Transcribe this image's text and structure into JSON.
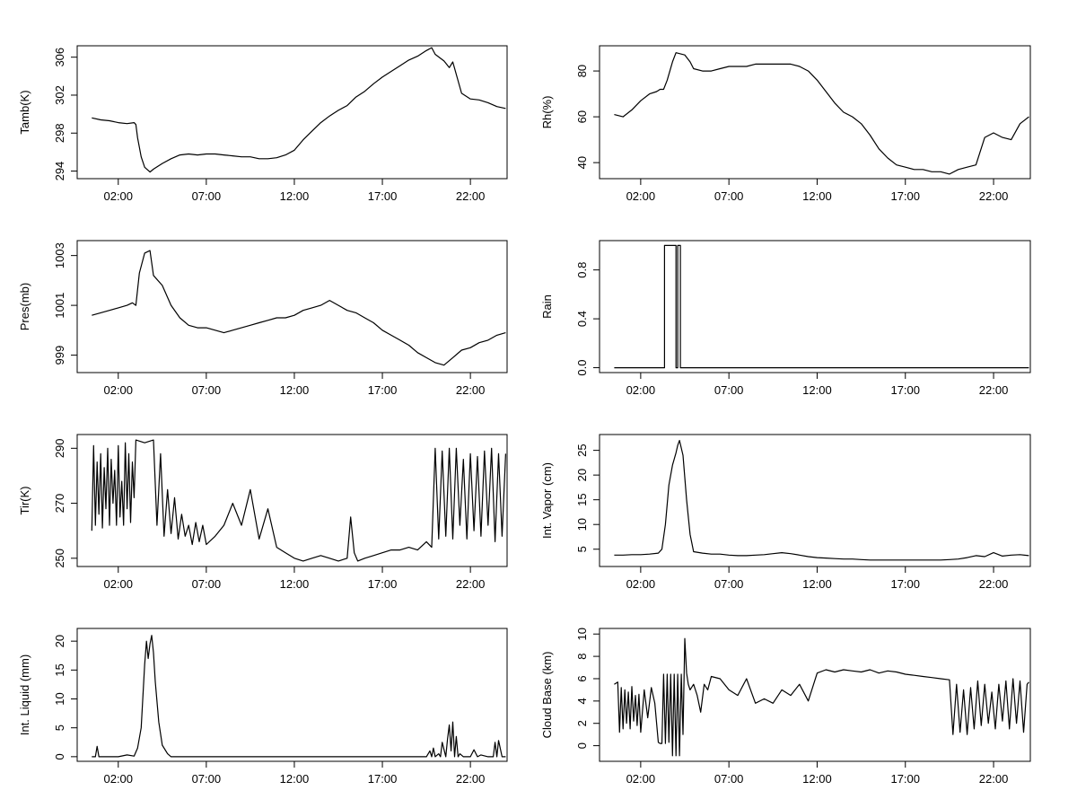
{
  "chart_data": [
    {
      "type": "line",
      "ylabel": "Tamb(K)",
      "xticks": [
        "02:00",
        "07:00",
        "12:00",
        "17:00",
        "22:00"
      ],
      "xlim": [
        -0.333,
        24.083
      ],
      "ylim": [
        293.2,
        307.2
      ],
      "yticks": [
        "294",
        "298",
        "302",
        "306"
      ],
      "series": [
        {
          "x": [
            0.5,
            1.0,
            1.5,
            2.0,
            2.5,
            2.9,
            3.0,
            3.1,
            3.3,
            3.5,
            3.8,
            4.0,
            4.5,
            5.0,
            5.5,
            6.0,
            6.5,
            7.0,
            7.5,
            8.0,
            8.5,
            9.0,
            9.5,
            10.0,
            10.5,
            11.0,
            11.5,
            12.0,
            12.5,
            13.0,
            13.5,
            14.0,
            14.5,
            15.0,
            15.5,
            16.0,
            16.5,
            17.0,
            17.5,
            18.0,
            18.5,
            19.0,
            19.5,
            19.8,
            20.0,
            20.5,
            20.8,
            21.0,
            21.5,
            22.0,
            22.5,
            23.0,
            23.5,
            24.0
          ],
          "y": [
            299.6,
            299.4,
            299.3,
            299.1,
            299.0,
            299.1,
            298.9,
            297.5,
            295.5,
            294.4,
            293.9,
            294.2,
            294.8,
            295.3,
            295.7,
            295.8,
            295.7,
            295.8,
            295.8,
            295.7,
            295.6,
            295.5,
            295.5,
            295.3,
            295.3,
            295.4,
            295.7,
            296.2,
            297.3,
            298.2,
            299.1,
            299.8,
            300.4,
            300.9,
            301.8,
            302.4,
            303.2,
            303.9,
            304.5,
            305.1,
            305.7,
            306.1,
            306.7,
            307.0,
            306.3,
            305.6,
            304.9,
            305.5,
            302.2,
            301.6,
            301.5,
            301.2,
            300.8,
            300.6
          ]
        }
      ]
    },
    {
      "type": "line",
      "ylabel": "Rh(%)",
      "xticks": [
        "02:00",
        "07:00",
        "12:00",
        "17:00",
        "22:00"
      ],
      "xlim": [
        -0.333,
        24.083
      ],
      "ylim": [
        33,
        91
      ],
      "yticks": [
        "40",
        "60",
        "80"
      ],
      "series": [
        {
          "x": [
            0.5,
            1.0,
            1.5,
            2.0,
            2.5,
            2.9,
            3.1,
            3.3,
            3.5,
            3.8,
            4.0,
            4.5,
            4.8,
            5.0,
            5.5,
            6.0,
            6.5,
            7.0,
            7.5,
            8.0,
            8.5,
            9.0,
            9.5,
            10.0,
            10.5,
            11.0,
            11.5,
            12.0,
            12.5,
            13.0,
            13.5,
            14.0,
            14.5,
            15.0,
            15.5,
            16.0,
            16.5,
            17.0,
            17.5,
            18.0,
            18.5,
            19.0,
            19.5,
            20.0,
            20.5,
            21.0,
            21.5,
            22.0,
            22.5,
            23.0,
            23.5,
            24.0
          ],
          "y": [
            61,
            60,
            63,
            67,
            70,
            71,
            72,
            72,
            76,
            84,
            88,
            87,
            84,
            81,
            80,
            80,
            81,
            82,
            82,
            82,
            83,
            83,
            83,
            83,
            83,
            82,
            80,
            76,
            71,
            66,
            62,
            60,
            57,
            52,
            46,
            42,
            39,
            38,
            37,
            37,
            36,
            36,
            35,
            37,
            38,
            39,
            51,
            53,
            51,
            50,
            57,
            60
          ]
        }
      ]
    },
    {
      "type": "line",
      "ylabel": "Pres(mb)",
      "xticks": [
        "02:00",
        "07:00",
        "12:00",
        "17:00",
        "22:00"
      ],
      "xlim": [
        -0.333,
        24.083
      ],
      "ylim": [
        998.3,
        1003.6
      ],
      "yticks": [
        "999",
        "1001",
        "1003"
      ],
      "series": [
        {
          "x": [
            0.5,
            1.0,
            1.5,
            2.0,
            2.5,
            2.8,
            3.0,
            3.2,
            3.5,
            3.8,
            4.0,
            4.5,
            5.0,
            5.5,
            6.0,
            6.5,
            7.0,
            7.5,
            8.0,
            8.5,
            9.0,
            9.5,
            10.0,
            10.5,
            11.0,
            11.5,
            12.0,
            12.5,
            13.0,
            13.5,
            14.0,
            14.5,
            15.0,
            15.5,
            16.0,
            16.5,
            17.0,
            17.5,
            18.0,
            18.5,
            19.0,
            19.5,
            20.0,
            20.5,
            21.0,
            21.5,
            22.0,
            22.5,
            23.0,
            23.5,
            24.0
          ],
          "y": [
            1000.6,
            1000.7,
            1000.8,
            1000.9,
            1001.0,
            1001.1,
            1001.0,
            1002.3,
            1003.1,
            1003.2,
            1002.2,
            1001.8,
            1001.0,
            1000.5,
            1000.2,
            1000.1,
            1000.1,
            1000.0,
            999.9,
            1000.0,
            1000.1,
            1000.2,
            1000.3,
            1000.4,
            1000.5,
            1000.5,
            1000.6,
            1000.8,
            1000.9,
            1001.0,
            1001.2,
            1001.0,
            1000.8,
            1000.7,
            1000.5,
            1000.3,
            1000.0,
            999.8,
            999.6,
            999.4,
            999.1,
            998.9,
            998.7,
            998.6,
            998.9,
            999.2,
            999.3,
            999.5,
            999.6,
            999.8,
            999.9
          ]
        }
      ]
    },
    {
      "type": "line",
      "ylabel": "Rain",
      "xticks": [
        "02:00",
        "07:00",
        "12:00",
        "17:00",
        "22:00"
      ],
      "xlim": [
        -0.333,
        24.083
      ],
      "ylim": [
        -0.04,
        1.04
      ],
      "yticks": [
        "0.0",
        "0.4",
        "0.8"
      ],
      "series": [
        {
          "x": [
            0.5,
            3.35,
            3.35,
            4.0,
            4.0,
            4.1,
            4.1,
            4.25,
            4.25,
            24.0
          ],
          "y": [
            0,
            0,
            1,
            1,
            0,
            0,
            1,
            1,
            0,
            0
          ]
        }
      ]
    },
    {
      "type": "line",
      "ylabel": "Tir(K)",
      "xticks": [
        "02:00",
        "07:00",
        "12:00",
        "17:00",
        "22:00"
      ],
      "xlim": [
        -0.333,
        24.083
      ],
      "ylim": [
        247,
        295
      ],
      "yticks": [
        "250",
        "270",
        "290"
      ],
      "series": [
        {
          "x": [
            0.5,
            0.6,
            0.7,
            0.8,
            0.9,
            1.0,
            1.1,
            1.2,
            1.3,
            1.4,
            1.5,
            1.6,
            1.7,
            1.8,
            1.9,
            2.0,
            2.1,
            2.2,
            2.3,
            2.4,
            2.5,
            2.6,
            2.7,
            2.8,
            2.9,
            3.0,
            3.5,
            4.0,
            4.2,
            4.4,
            4.6,
            4.8,
            5.0,
            5.2,
            5.4,
            5.6,
            5.8,
            6.0,
            6.2,
            6.4,
            6.6,
            6.8,
            7.0,
            7.5,
            8.0,
            8.5,
            9.0,
            9.5,
            10.0,
            10.5,
            11.0,
            11.5,
            12.0,
            12.5,
            13.0,
            13.5,
            14.0,
            14.5,
            15.0,
            15.2,
            15.4,
            15.6,
            16.0,
            16.5,
            17.0,
            17.5,
            18.0,
            18.5,
            19.0,
            19.5,
            19.8,
            20.0,
            20.2,
            20.4,
            20.6,
            20.8,
            21.0,
            21.2,
            21.4,
            21.6,
            21.8,
            22.0,
            22.2,
            22.4,
            22.6,
            22.8,
            23.0,
            23.2,
            23.4,
            23.6,
            23.8,
            24.0
          ],
          "y": [
            260,
            291,
            262,
            285,
            266,
            288,
            261,
            283,
            268,
            290,
            262,
            286,
            270,
            282,
            262,
            291,
            265,
            278,
            262,
            292,
            268,
            288,
            263,
            285,
            272,
            293,
            292,
            293,
            262,
            288,
            258,
            275,
            259,
            272,
            257,
            266,
            258,
            262,
            255,
            263,
            256,
            262,
            255,
            258,
            262,
            270,
            262,
            275,
            257,
            268,
            254,
            252,
            250,
            249,
            250,
            251,
            250,
            249,
            250,
            265,
            252,
            249,
            250,
            251,
            252,
            253,
            253,
            254,
            253,
            256,
            254,
            290,
            257,
            289,
            258,
            290,
            257,
            290,
            262,
            286,
            257,
            288,
            260,
            287,
            258,
            289,
            262,
            290,
            256,
            288,
            258,
            288
          ]
        }
      ]
    },
    {
      "type": "line",
      "ylabel": "Int. Vapor (cm)",
      "xticks": [
        "02:00",
        "07:00",
        "12:00",
        "17:00",
        "22:00"
      ],
      "xlim": [
        -0.333,
        24.083
      ],
      "ylim": [
        1.5,
        28.2
      ],
      "yticks": [
        "5",
        "10",
        "15",
        "20",
        "25"
      ],
      "series": [
        {
          "x": [
            0.5,
            1.0,
            1.5,
            2.0,
            2.5,
            3.0,
            3.2,
            3.4,
            3.6,
            3.8,
            4.0,
            4.1,
            4.2,
            4.4,
            4.6,
            4.8,
            5.0,
            5.5,
            6.0,
            6.5,
            7.0,
            7.5,
            8.0,
            8.5,
            9.0,
            9.5,
            10.0,
            10.5,
            11.0,
            11.5,
            12.0,
            12.5,
            13.0,
            13.5,
            14.0,
            14.5,
            15.0,
            15.5,
            16.0,
            16.5,
            17.0,
            17.5,
            18.0,
            18.5,
            19.0,
            19.5,
            20.0,
            20.5,
            21.0,
            21.5,
            22.0,
            22.5,
            23.0,
            23.5,
            24.0
          ],
          "y": [
            3.8,
            3.8,
            3.9,
            3.9,
            4.0,
            4.2,
            5.0,
            10.0,
            18.0,
            22.0,
            24.5,
            26.0,
            27.0,
            24.0,
            15.0,
            8.0,
            4.5,
            4.2,
            4.0,
            4.0,
            3.8,
            3.7,
            3.7,
            3.8,
            3.9,
            4.1,
            4.3,
            4.1,
            3.8,
            3.5,
            3.3,
            3.2,
            3.1,
            3.0,
            3.0,
            2.9,
            2.8,
            2.8,
            2.8,
            2.8,
            2.8,
            2.8,
            2.8,
            2.8,
            2.8,
            2.9,
            3.0,
            3.3,
            3.7,
            3.5,
            4.3,
            3.6,
            3.8,
            3.9,
            3.7
          ]
        }
      ]
    },
    {
      "type": "line",
      "ylabel": "Int. Liquid (mm)",
      "xticks": [
        "02:00",
        "07:00",
        "12:00",
        "17:00",
        "22:00"
      ],
      "xlim": [
        -0.333,
        24.083
      ],
      "ylim": [
        -0.8,
        22.2
      ],
      "yticks": [
        "0",
        "5",
        "10",
        "15",
        "20"
      ],
      "series": [
        {
          "x": [
            0.5,
            0.7,
            0.8,
            0.9,
            1.0,
            2.0,
            2.5,
            2.9,
            3.1,
            3.3,
            3.5,
            3.6,
            3.7,
            3.8,
            3.9,
            4.0,
            4.1,
            4.3,
            4.5,
            4.8,
            5.0,
            6.0,
            10.0,
            15.0,
            19.5,
            19.7,
            19.8,
            19.9,
            20.0,
            20.2,
            20.3,
            20.4,
            20.6,
            20.7,
            20.8,
            20.9,
            21.0,
            21.1,
            21.2,
            21.3,
            21.4,
            21.6,
            22.0,
            22.2,
            22.4,
            22.6,
            23.0,
            23.3,
            23.4,
            23.5,
            23.6,
            23.8,
            24.0
          ],
          "y": [
            0,
            0,
            1.8,
            0,
            0,
            0,
            0.3,
            0.1,
            1.5,
            5.0,
            16.0,
            20.0,
            17.0,
            19.5,
            21.0,
            18.0,
            13.0,
            6.0,
            2.0,
            0.5,
            0,
            0,
            0,
            0,
            0,
            1.0,
            0,
            1.5,
            0,
            0.5,
            0,
            2.5,
            0,
            3.0,
            5.5,
            1.0,
            6.0,
            0,
            3.5,
            0,
            0.5,
            0,
            0,
            1.2,
            0,
            0.3,
            0,
            0,
            2.5,
            0,
            2.8,
            0,
            0
          ]
        }
      ]
    },
    {
      "type": "line",
      "ylabel": "Cloud Base (km)",
      "xticks": [
        "02:00",
        "07:00",
        "12:00",
        "17:00",
        "22:00"
      ],
      "xlim": [
        -0.333,
        24.083
      ],
      "ylim": [
        -1.4,
        10.5
      ],
      "yticks": [
        "0",
        "2",
        "4",
        "6",
        "8",
        "10"
      ],
      "series": [
        {
          "x": [
            0.5,
            0.7,
            0.8,
            0.9,
            1.0,
            1.1,
            1.2,
            1.3,
            1.4,
            1.5,
            1.6,
            1.7,
            1.8,
            1.9,
            2.0,
            2.2,
            2.4,
            2.6,
            2.8,
            3.0,
            3.1,
            3.2,
            3.3,
            3.4,
            3.5,
            3.6,
            3.7,
            3.8,
            3.9,
            4.0,
            4.1,
            4.2,
            4.3,
            4.4,
            4.5,
            4.6,
            4.7,
            4.8,
            5.0,
            5.2,
            5.4,
            5.6,
            5.8,
            6.0,
            6.5,
            7.0,
            7.5,
            8.0,
            8.5,
            9.0,
            9.5,
            10.0,
            10.5,
            11.0,
            11.5,
            12.0,
            12.5,
            13.0,
            13.5,
            14.0,
            14.5,
            15.0,
            15.5,
            16.0,
            16.5,
            17.0,
            17.5,
            18.0,
            18.5,
            19.0,
            19.5,
            19.7,
            19.9,
            20.1,
            20.3,
            20.5,
            20.7,
            20.9,
            21.1,
            21.3,
            21.5,
            21.7,
            21.9,
            22.1,
            22.3,
            22.5,
            22.7,
            22.9,
            23.1,
            23.3,
            23.5,
            23.7,
            23.9,
            24.0
          ],
          "y": [
            5.5,
            5.7,
            1.2,
            5.2,
            1.5,
            5.0,
            2.0,
            4.8,
            1.5,
            5.3,
            2.2,
            4.5,
            1.8,
            4.6,
            1.2,
            5.0,
            2.5,
            5.2,
            3.8,
            0.3,
            0.2,
            0.2,
            6.4,
            0.2,
            6.4,
            0.3,
            6.4,
            -0.9,
            6.4,
            -0.9,
            6.4,
            -0.9,
            6.4,
            1.0,
            9.6,
            6.5,
            5.5,
            5.0,
            5.5,
            4.5,
            3.0,
            5.5,
            5.0,
            6.2,
            6.0,
            5.0,
            4.5,
            6.0,
            3.8,
            4.2,
            3.8,
            5.0,
            4.5,
            5.5,
            4.0,
            6.5,
            6.8,
            6.6,
            6.8,
            6.7,
            6.6,
            6.8,
            6.5,
            6.7,
            6.6,
            6.4,
            6.3,
            6.2,
            6.1,
            6.0,
            5.9,
            1.0,
            5.5,
            1.2,
            5.0,
            1.0,
            5.2,
            1.5,
            5.8,
            1.8,
            5.5,
            2.0,
            4.8,
            1.5,
            5.5,
            2.2,
            5.8,
            1.5,
            6.0,
            2.0,
            5.8,
            1.2,
            5.5,
            5.7
          ]
        }
      ]
    }
  ]
}
